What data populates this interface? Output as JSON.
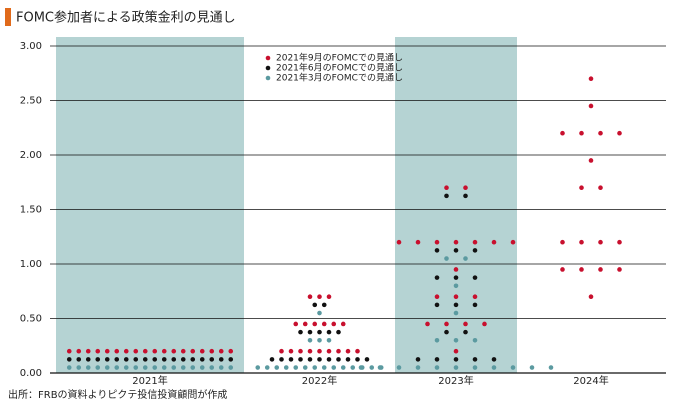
{
  "chart_data": {
    "type": "dot",
    "title": "FOMC参加者による政策金利の見通し",
    "unit": "%",
    "source": "出所：FRBの資料よりピクテ投信投資顧問が作成",
    "categories": [
      "2021年",
      "2022年",
      "2023年",
      "2024年"
    ],
    "ylim": [
      0,
      3.0
    ],
    "yticks": [
      {
        "value": 0,
        "label": "0.00"
      },
      {
        "value": 0.5,
        "label": "0.50"
      },
      {
        "value": 1.0,
        "label": "1.00"
      },
      {
        "value": 1.5,
        "label": "1.50"
      },
      {
        "value": 2.0,
        "label": "2.00"
      },
      {
        "value": 2.5,
        "label": "2.50"
      },
      {
        "value": 3.0,
        "label": "3.00"
      }
    ],
    "grid": true,
    "series": [
      {
        "name": "2021年9月のFOMCでの見通し",
        "color": "#c8102e",
        "values": [
          [
            0.2,
            0.2,
            0.2,
            0.2,
            0.2,
            0.2,
            0.2,
            0.2,
            0.2,
            0.2,
            0.2,
            0.2,
            0.2,
            0.2,
            0.2,
            0.2,
            0.2,
            0.2
          ],
          [
            0.2,
            0.2,
            0.2,
            0.2,
            0.2,
            0.2,
            0.2,
            0.2,
            0.2,
            0.45,
            0.45,
            0.45,
            0.45,
            0.45,
            0.45,
            0.7,
            0.7,
            0.7
          ],
          [
            0.2,
            0.45,
            0.45,
            0.45,
            0.45,
            0.7,
            0.7,
            0.7,
            0.95,
            1.2,
            1.2,
            1.2,
            1.2,
            1.2,
            1.2,
            1.2,
            1.7,
            1.7
          ],
          [
            0.7,
            0.95,
            0.95,
            0.95,
            0.95,
            1.2,
            1.2,
            1.2,
            1.2,
            1.7,
            1.7,
            1.95,
            2.2,
            2.2,
            2.2,
            2.2,
            2.45,
            2.7
          ]
        ]
      },
      {
        "name": "2021年6月のFOMCでの見通し",
        "color": "#111111",
        "values": [
          [
            0.125,
            0.125,
            0.125,
            0.125,
            0.125,
            0.125,
            0.125,
            0.125,
            0.125,
            0.125,
            0.125,
            0.125,
            0.125,
            0.125,
            0.125,
            0.125,
            0.125,
            0.125
          ],
          [
            0.125,
            0.125,
            0.125,
            0.125,
            0.125,
            0.125,
            0.125,
            0.125,
            0.125,
            0.125,
            0.125,
            0.375,
            0.375,
            0.375,
            0.375,
            0.375,
            0.625,
            0.625
          ],
          [
            0.125,
            0.125,
            0.125,
            0.125,
            0.125,
            0.375,
            0.375,
            0.625,
            0.625,
            0.625,
            0.875,
            0.875,
            0.875,
            1.125,
            1.125,
            1.125,
            1.625,
            1.625
          ],
          []
        ]
      },
      {
        "name": "2021年3月のFOMCでの見通し",
        "color": "#5b9aa0",
        "values": [
          [
            0.05,
            0.05,
            0.05,
            0.05,
            0.05,
            0.05,
            0.05,
            0.05,
            0.05,
            0.05,
            0.05,
            0.05,
            0.05,
            0.05,
            0.05,
            0.05,
            0.05,
            0.05
          ],
          [
            0.05,
            0.05,
            0.05,
            0.05,
            0.05,
            0.05,
            0.05,
            0.05,
            0.05,
            0.05,
            0.05,
            0.05,
            0.05,
            0.05,
            0.3,
            0.3,
            0.3,
            0.55
          ],
          [
            0.05,
            0.05,
            0.05,
            0.05,
            0.05,
            0.05,
            0.05,
            0.05,
            0.05,
            0.05,
            0.05,
            0.3,
            0.3,
            0.3,
            0.55,
            0.8,
            1.05,
            1.05
          ],
          []
        ]
      }
    ]
  }
}
